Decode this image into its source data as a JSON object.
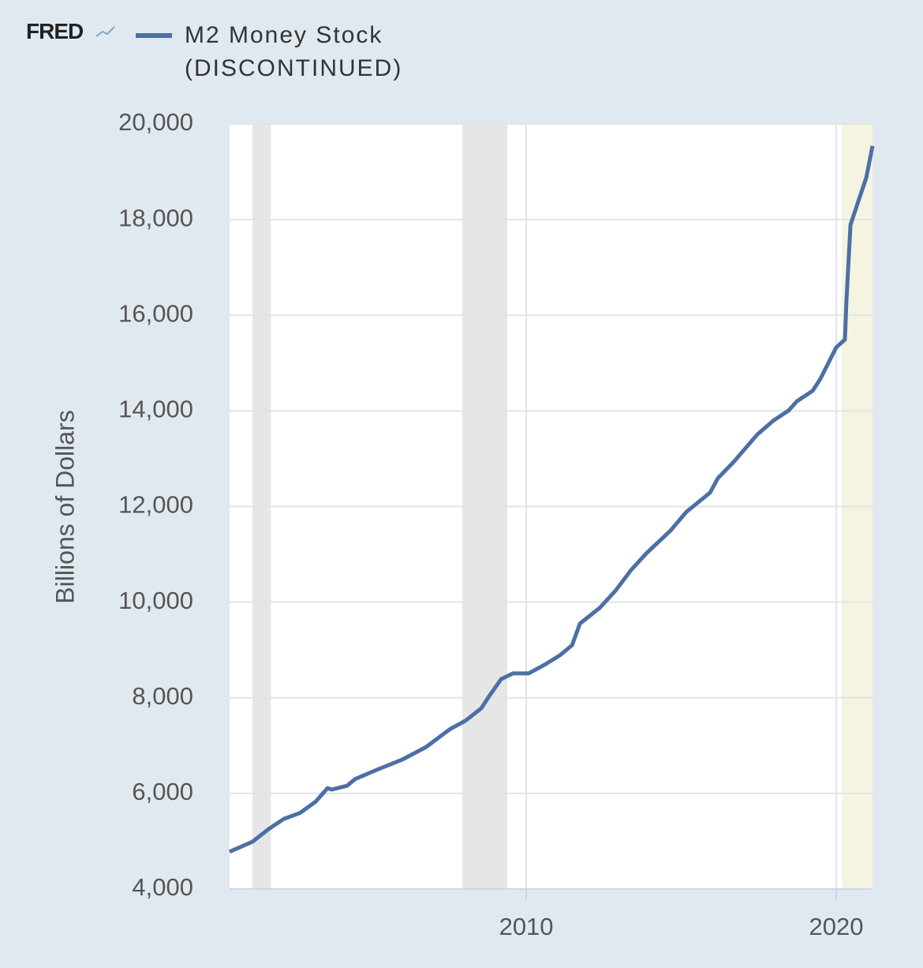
{
  "logo": "FRED",
  "chart_data": {
    "type": "line",
    "title": "M2 Money Stock (DISCONTINUED)",
    "y_label": "Billions of Dollars",
    "x": [
      2000.43,
      2001.17,
      2001.68,
      2002.19,
      2002.7,
      2003.21,
      2003.59,
      2003.72,
      2004.22,
      2004.48,
      2005.24,
      2006.01,
      2006.77,
      2007.53,
      2008.04,
      2008.55,
      2008.8,
      2009.19,
      2009.57,
      2010.08,
      2010.59,
      2011.09,
      2011.48,
      2011.73,
      2012.37,
      2012.88,
      2013.38,
      2013.89,
      2014.66,
      2015.17,
      2015.93,
      2016.18,
      2016.69,
      2017.46,
      2017.96,
      2018.47,
      2018.73,
      2019.24,
      2019.49,
      2020.0,
      2020.28,
      2020.33,
      2020.46,
      2020.71,
      2020.97,
      2021.17
    ],
    "series": [
      {
        "name": "M2 Money Stock (DISCONTINUED)",
        "color": "#4c6fa5",
        "values": [
          4780,
          4990,
          5250,
          5470,
          5590,
          5830,
          6110,
          6080,
          6160,
          6300,
          6510,
          6710,
          6970,
          7340,
          7520,
          7780,
          8030,
          8390,
          8510,
          8510,
          8690,
          8890,
          9100,
          9550,
          9880,
          10240,
          10670,
          11030,
          11500,
          11890,
          12290,
          12590,
          12930,
          13510,
          13790,
          14010,
          14200,
          14420,
          14670,
          15330,
          15490,
          16320,
          17890,
          18380,
          18880,
          19540
        ]
      }
    ],
    "recessions": [
      [
        2001.17,
        2001.76
      ],
      [
        2007.94,
        2009.39
      ]
    ],
    "highlight": [
      2020.18,
      2021.17
    ],
    "xlim": [
      2000.43,
      2021.17
    ],
    "xticks": [
      2010,
      2020
    ],
    "ylim": [
      4000,
      20000
    ],
    "yticks": [
      {
        "value": 4000,
        "label": "4,000"
      },
      {
        "value": 6000,
        "label": "6,000"
      },
      {
        "value": 8000,
        "label": "8,000"
      },
      {
        "value": 10000,
        "label": "10,000"
      },
      {
        "value": 12000,
        "label": "12,000"
      },
      {
        "value": 14000,
        "label": "14,000"
      },
      {
        "value": 16000,
        "label": "16,000"
      },
      {
        "value": 18000,
        "label": "18,000"
      },
      {
        "value": 20000,
        "label": "20,000"
      }
    ],
    "grid": true
  }
}
